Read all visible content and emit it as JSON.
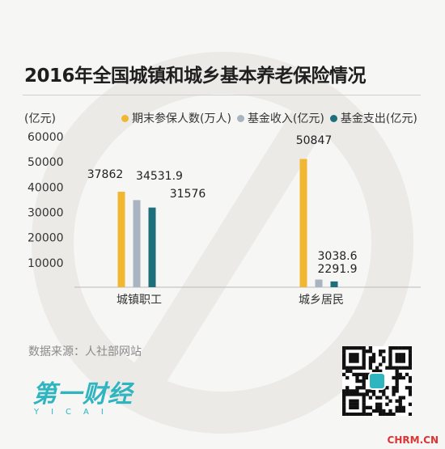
{
  "title": "2016年全国城镇和城乡基本养老保险情况",
  "chart_data": {
    "type": "bar",
    "ylabel": "(亿元)",
    "ylim": [
      0,
      60000
    ],
    "yticks": [
      10000,
      20000,
      30000,
      40000,
      50000,
      60000
    ],
    "categories": [
      "城镇职工",
      "城乡居民"
    ],
    "series": [
      {
        "name": "期末参保人数(万人)",
        "color": "#f2b730",
        "values": [
          37862,
          50847
        ],
        "labels": [
          "37862",
          "50847"
        ]
      },
      {
        "name": "基金收入(亿元)",
        "color": "#a8b4bf",
        "values": [
          34531.9,
          3038.6
        ],
        "labels": [
          "34531.9",
          "3038.6"
        ]
      },
      {
        "name": "基金支出(亿元)",
        "color": "#1e6f7c",
        "values": [
          31576,
          2291.9
        ],
        "labels": [
          "31576",
          "2291.9"
        ]
      }
    ],
    "legend_position": "top",
    "grid": false
  },
  "source": "数据来源：人社部网站",
  "logo": {
    "cn": "第一财经",
    "en": "YICAI"
  },
  "footer_mark": "CHRM.CN"
}
